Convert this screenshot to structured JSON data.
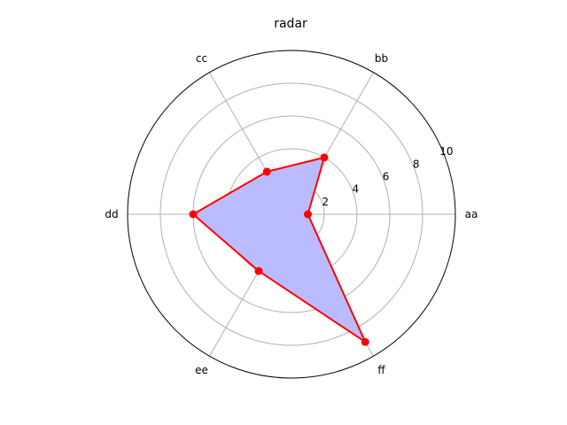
{
  "chart_data": {
    "type": "radar",
    "title": "radar",
    "categories": [
      "aa",
      "bb",
      "cc",
      "dd",
      "ee",
      "ff"
    ],
    "series": [
      {
        "values": [
          1,
          4,
          3,
          6,
          4,
          9
        ]
      }
    ],
    "rlim": [
      0,
      10
    ],
    "r_ticks": [
      2,
      4,
      6,
      8,
      10
    ],
    "grid": true,
    "legend": "none",
    "colors": {
      "line": "#ff0000",
      "fill": "#bbbbff",
      "grid": "#b0b0b0",
      "frame": "#000000"
    }
  }
}
